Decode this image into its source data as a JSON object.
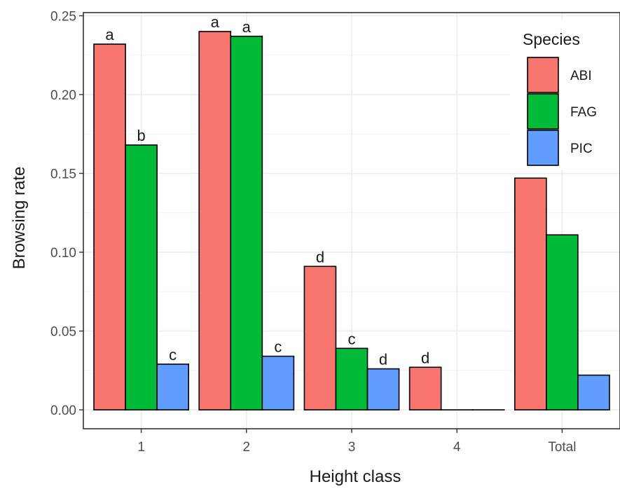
{
  "chart_data": {
    "type": "bar",
    "xlabel": "Height class",
    "ylabel": "Browsing rate",
    "categories": [
      "1",
      "2",
      "3",
      "4",
      "Total"
    ],
    "ylim": [
      -0.012,
      0.252
    ],
    "yticks": [
      0.0,
      0.05,
      0.1,
      0.15,
      0.2,
      0.25
    ],
    "ytick_labels": [
      "0.00",
      "0.05",
      "0.10",
      "0.15",
      "0.20",
      "0.25"
    ],
    "grid": true,
    "legend": {
      "title": "Species",
      "position": "top-right, inside"
    },
    "series": [
      {
        "name": "ABI",
        "color": "#F8766D",
        "values": [
          0.232,
          0.24,
          0.091,
          0.027,
          0.147
        ],
        "labels": [
          "a",
          "a",
          "d",
          "d",
          ""
        ]
      },
      {
        "name": "FAG",
        "color": "#00BA38",
        "values": [
          0.168,
          0.237,
          0.039,
          0.0,
          0.111
        ],
        "labels": [
          "b",
          "a",
          "c",
          "",
          ""
        ]
      },
      {
        "name": "PIC",
        "color": "#619CFF",
        "values": [
          0.029,
          0.034,
          0.026,
          0.0,
          0.022
        ],
        "labels": [
          "c",
          "c",
          "d",
          "",
          ""
        ]
      }
    ]
  }
}
